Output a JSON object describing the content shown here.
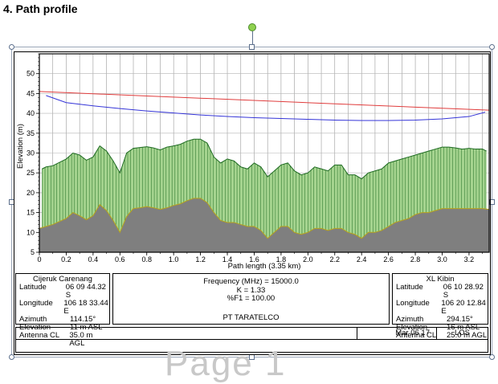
{
  "heading": "4. Path profile",
  "watermark": "Page 1",
  "chart_data": {
    "type": "line",
    "xlabel": "Path length (3.35 km)",
    "ylabel": "Elevation (m)",
    "xlim": [
      0,
      3.35
    ],
    "ylim": [
      5,
      55
    ],
    "x_ticks": [
      "0",
      "0.2",
      "0.4",
      "0.6",
      "0.8",
      "1.0",
      "1.2",
      "1.4",
      "1.6",
      "1.8",
      "2.0",
      "2.2",
      "2.4",
      "2.6",
      "2.8",
      "3.0",
      "3.2"
    ],
    "y_ticks": [
      "5",
      "10",
      "15",
      "20",
      "25",
      "30",
      "35",
      "40",
      "45",
      "50"
    ],
    "grid": true,
    "series": [
      {
        "role": "line-of-sight",
        "color": "#e03c3c",
        "x": [
          0.0,
          3.35
        ],
        "y": [
          45.5,
          40.8
        ]
      },
      {
        "role": "fresnel-lower",
        "color": "#3535d8",
        "x": [
          0.05,
          0.2,
          0.4,
          0.6,
          0.8,
          1.0,
          1.2,
          1.4,
          1.6,
          1.8,
          2.0,
          2.2,
          2.4,
          2.6,
          2.8,
          3.0,
          3.2,
          3.32
        ],
        "y": [
          44.5,
          42.7,
          41.9,
          41.2,
          40.6,
          40.1,
          39.6,
          39.2,
          38.9,
          38.7,
          38.5,
          38.3,
          38.2,
          38.2,
          38.3,
          38.6,
          39.2,
          40.3
        ]
      },
      {
        "role": "terrain-with-clutter",
        "color": "#2e7d32",
        "x": [
          0.02,
          0.05,
          0.1,
          0.2,
          0.25,
          0.3,
          0.35,
          0.4,
          0.45,
          0.5,
          0.55,
          0.6,
          0.65,
          0.7,
          0.75,
          0.8,
          0.85,
          0.9,
          0.95,
          1.0,
          1.05,
          1.1,
          1.15,
          1.2,
          1.25,
          1.3,
          1.35,
          1.4,
          1.45,
          1.5,
          1.55,
          1.6,
          1.65,
          1.7,
          1.75,
          1.8,
          1.85,
          1.9,
          1.95,
          2.0,
          2.05,
          2.1,
          2.15,
          2.2,
          2.25,
          2.3,
          2.35,
          2.4,
          2.45,
          2.5,
          2.55,
          2.6,
          2.65,
          2.7,
          2.75,
          2.8,
          2.85,
          2.9,
          2.95,
          3.0,
          3.05,
          3.1,
          3.15,
          3.2,
          3.25,
          3.3,
          3.33
        ],
        "y": [
          26.0,
          26.5,
          26.8,
          28.5,
          30.0,
          29.5,
          28.2,
          29.0,
          31.8,
          30.5,
          28.0,
          25.0,
          30.0,
          31.2,
          31.4,
          31.6,
          31.3,
          30.8,
          31.5,
          31.8,
          32.2,
          33.0,
          33.5,
          33.5,
          32.5,
          29.0,
          27.5,
          28.5,
          28.0,
          26.5,
          26.0,
          27.5,
          26.5,
          24.0,
          25.5,
          27.0,
          27.5,
          25.5,
          24.5,
          25.0,
          26.5,
          26.0,
          25.5,
          27.0,
          27.0,
          24.5,
          24.5,
          23.5,
          25.0,
          25.5,
          26.0,
          27.5,
          28.0,
          28.5,
          29.0,
          29.5,
          30.0,
          30.5,
          31.0,
          31.5,
          31.5,
          31.3,
          31.0,
          31.2,
          31.0,
          31.0,
          30.5
        ]
      },
      {
        "role": "terrain",
        "color": "#808080",
        "x": [
          0.0,
          0.05,
          0.1,
          0.2,
          0.25,
          0.3,
          0.35,
          0.4,
          0.45,
          0.5,
          0.55,
          0.6,
          0.65,
          0.7,
          0.75,
          0.8,
          0.85,
          0.9,
          0.95,
          1.0,
          1.05,
          1.1,
          1.15,
          1.2,
          1.25,
          1.3,
          1.35,
          1.4,
          1.45,
          1.5,
          1.55,
          1.6,
          1.65,
          1.7,
          1.75,
          1.8,
          1.85,
          1.9,
          1.95,
          2.0,
          2.05,
          2.1,
          2.15,
          2.2,
          2.25,
          2.3,
          2.35,
          2.4,
          2.45,
          2.5,
          2.55,
          2.6,
          2.65,
          2.7,
          2.75,
          2.8,
          2.85,
          2.9,
          2.95,
          3.0,
          3.05,
          3.1,
          3.15,
          3.2,
          3.25,
          3.3,
          3.35
        ],
        "y": [
          11.0,
          11.5,
          12.0,
          13.5,
          15.0,
          14.2,
          13.2,
          14.2,
          17.0,
          15.5,
          13.0,
          10.0,
          14.0,
          16.0,
          16.2,
          16.5,
          16.2,
          15.8,
          16.2,
          16.8,
          17.2,
          18.0,
          18.6,
          18.6,
          17.5,
          15.0,
          13.0,
          12.5,
          12.5,
          12.0,
          11.5,
          11.5,
          10.5,
          8.5,
          10.0,
          11.5,
          11.5,
          10.0,
          9.5,
          10.0,
          11.0,
          11.0,
          10.5,
          11.0,
          11.0,
          10.0,
          9.5,
          8.5,
          10.0,
          10.0,
          10.5,
          11.5,
          12.5,
          13.0,
          13.5,
          14.5,
          15.0,
          15.0,
          15.5,
          16.0,
          16.0,
          16.0,
          16.0,
          16.0,
          16.0,
          16.0,
          15.8
        ]
      }
    ]
  },
  "site_left": {
    "name": "Cijeruk Carenang",
    "rows": [
      {
        "k": "Latitude",
        "v": "06 09 44.32 S"
      },
      {
        "k": "Longitude",
        "v": "106 18 33.44 E"
      },
      {
        "k": "Azimuth",
        "v": "114.15°"
      },
      {
        "k": "Elevation",
        "v": "11 m ASL"
      },
      {
        "k": "Antenna CL",
        "v": "35.0 m AGL"
      }
    ]
  },
  "site_right": {
    "name": "XL Kibin",
    "rows": [
      {
        "k": "Latitude",
        "v": "06 10 28.92 S"
      },
      {
        "k": "Longitude",
        "v": "106 20 12.84 E"
      },
      {
        "k": "Azimuth",
        "v": "294.15°"
      },
      {
        "k": "Elevation",
        "v": "16 m ASL"
      },
      {
        "k": "Antenna CL",
        "v": "25.0 m AGL"
      }
    ]
  },
  "center": {
    "frequency": "Frequency (MHz) = 15000.0",
    "k": "K = 1.33",
    "f1": "%F1 = 100.00",
    "company": "PT TARATELCO"
  },
  "title_block": {
    "date": "Mar 06 17",
    "type": "LOS"
  }
}
